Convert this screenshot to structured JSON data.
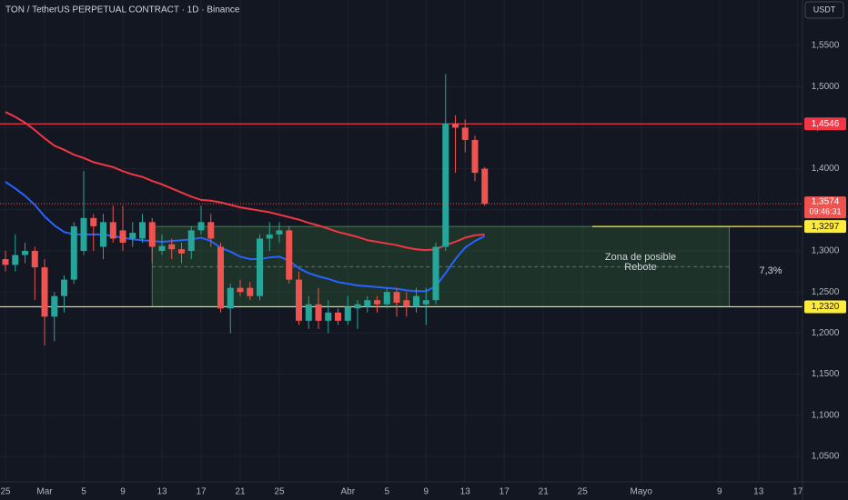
{
  "chart_data": {
    "type": "candlestick",
    "title": "TON / TetherUS PERPETUAL CONTRACT · 1D · Binance",
    "currency": "USDT",
    "xlim": [
      -0.56,
      81.49
    ],
    "ylim": [
      1.019,
      1.6053
    ],
    "xticks": [
      {
        "value": 0,
        "label": "25"
      },
      {
        "value": 4,
        "label": "Mar"
      },
      {
        "value": 8,
        "label": "5"
      },
      {
        "value": 12,
        "label": "9"
      },
      {
        "value": 16,
        "label": "13"
      },
      {
        "value": 20,
        "label": "17"
      },
      {
        "value": 24,
        "label": "21"
      },
      {
        "value": 28,
        "label": "25"
      },
      {
        "value": 35,
        "label": "Abr"
      },
      {
        "value": 39,
        "label": "5"
      },
      {
        "value": 43,
        "label": "9"
      },
      {
        "value": 47,
        "label": "13"
      },
      {
        "value": 51,
        "label": "17"
      },
      {
        "value": 55,
        "label": "21"
      },
      {
        "value": 59,
        "label": "25"
      },
      {
        "value": 65,
        "label": "Mayo"
      },
      {
        "value": 73,
        "label": "9"
      },
      {
        "value": 77,
        "label": "13"
      },
      {
        "value": 81,
        "label": "17"
      }
    ],
    "yticks": [
      {
        "value": 1.55,
        "label": "1,5500"
      },
      {
        "value": 1.5,
        "label": "1,5000"
      },
      {
        "value": 1.45,
        "label": "1,4500"
      },
      {
        "value": 1.4,
        "label": "1,4000"
      },
      {
        "value": 1.35,
        "label": "1,3500"
      },
      {
        "value": 1.3,
        "label": "1,3000"
      },
      {
        "value": 1.25,
        "label": "1,2500"
      },
      {
        "value": 1.2,
        "label": "1,2000"
      },
      {
        "value": 1.15,
        "label": "1,1500"
      },
      {
        "value": 1.1,
        "label": "1,1000"
      },
      {
        "value": 1.05,
        "label": "1,0500"
      }
    ],
    "grid": true,
    "up_color": "#26a69a",
    "down_color": "#ef5350",
    "candles": {
      "x": [
        0,
        1,
        2,
        3,
        4,
        5,
        6,
        7,
        8,
        9,
        10,
        11,
        12,
        13,
        14,
        15,
        16,
        17,
        18,
        19,
        20,
        21,
        22,
        23,
        24,
        25,
        26,
        27,
        28,
        29,
        30,
        31,
        32,
        33,
        34,
        35,
        36,
        37,
        38,
        39,
        40,
        41,
        42,
        43,
        44,
        45,
        46,
        47,
        48,
        49
      ],
      "open": [
        1.29,
        1.283,
        1.295,
        1.3,
        1.28,
        1.22,
        1.245,
        1.265,
        1.3,
        1.34,
        1.305,
        1.335,
        1.325,
        1.315,
        1.315,
        1.335,
        1.3,
        1.308,
        1.302,
        1.3,
        1.325,
        1.335,
        1.305,
        1.23,
        1.255,
        1.255,
        1.245,
        1.315,
        1.32,
        1.325,
        1.265,
        1.215,
        1.235,
        1.215,
        1.225,
        1.215,
        1.23,
        1.232,
        1.24,
        1.235,
        1.25,
        1.24,
        1.232,
        1.235,
        1.24,
        1.305,
        1.455,
        1.45,
        1.435,
        1.4
      ],
      "high": [
        1.3,
        1.32,
        1.31,
        1.305,
        1.29,
        1.25,
        1.27,
        1.335,
        1.397,
        1.345,
        1.345,
        1.355,
        1.355,
        1.335,
        1.345,
        1.34,
        1.32,
        1.315,
        1.31,
        1.33,
        1.355,
        1.345,
        1.31,
        1.26,
        1.265,
        1.262,
        1.32,
        1.335,
        1.335,
        1.33,
        1.275,
        1.245,
        1.255,
        1.24,
        1.23,
        1.245,
        1.24,
        1.245,
        1.245,
        1.255,
        1.255,
        1.25,
        1.255,
        1.255,
        1.31,
        1.515,
        1.465,
        1.46,
        1.44,
        1.402
      ],
      "low": [
        1.275,
        1.275,
        1.285,
        1.24,
        1.185,
        1.19,
        1.225,
        1.26,
        1.295,
        1.3,
        1.29,
        1.31,
        1.3,
        1.305,
        1.31,
        1.285,
        1.295,
        1.29,
        1.285,
        1.29,
        1.32,
        1.305,
        1.225,
        1.2,
        1.245,
        1.24,
        1.24,
        1.3,
        1.31,
        1.26,
        1.21,
        1.205,
        1.205,
        1.2,
        1.21,
        1.21,
        1.205,
        1.225,
        1.225,
        1.23,
        1.22,
        1.22,
        1.225,
        1.21,
        1.235,
        1.3,
        1.395,
        1.42,
        1.385,
        1.355
      ],
      "close": [
        1.283,
        1.295,
        1.3,
        1.28,
        1.22,
        1.245,
        1.265,
        1.33,
        1.34,
        1.33,
        1.335,
        1.315,
        1.31,
        1.322,
        1.335,
        1.305,
        1.306,
        1.302,
        1.297,
        1.325,
        1.335,
        1.315,
        1.23,
        1.255,
        1.25,
        1.245,
        1.315,
        1.32,
        1.325,
        1.265,
        1.215,
        1.235,
        1.215,
        1.225,
        1.215,
        1.232,
        1.235,
        1.24,
        1.235,
        1.25,
        1.237,
        1.232,
        1.245,
        1.24,
        1.305,
        1.455,
        1.45,
        1.435,
        1.395,
        1.3574
      ]
    },
    "series": [
      {
        "color": "#f23645",
        "values": [
          1.469,
          1.463,
          1.456,
          1.447,
          1.437,
          1.428,
          1.423,
          1.417,
          1.413,
          1.408,
          1.405,
          1.402,
          1.397,
          1.393,
          1.39,
          1.385,
          1.381,
          1.376,
          1.371,
          1.366,
          1.362,
          1.361,
          1.359,
          1.356,
          1.353,
          1.351,
          1.349,
          1.347,
          1.344,
          1.341,
          1.338,
          1.334,
          1.331,
          1.327,
          1.323,
          1.32,
          1.317,
          1.313,
          1.311,
          1.309,
          1.307,
          1.304,
          1.302,
          1.301,
          1.302,
          1.307,
          1.311,
          1.316,
          1.319,
          1.32
        ]
      },
      {
        "color": "#2962ff",
        "values": [
          1.384,
          1.376,
          1.367,
          1.356,
          1.342,
          1.331,
          1.323,
          1.32,
          1.32,
          1.32,
          1.32,
          1.318,
          1.316,
          1.314,
          1.313,
          1.312,
          1.311,
          1.312,
          1.313,
          1.314,
          1.316,
          1.312,
          1.304,
          1.299,
          1.293,
          1.29,
          1.29,
          1.292,
          1.293,
          1.288,
          1.279,
          1.273,
          1.269,
          1.266,
          1.262,
          1.26,
          1.258,
          1.257,
          1.256,
          1.255,
          1.254,
          1.252,
          1.251,
          1.251,
          1.257,
          1.273,
          1.29,
          1.304,
          1.312,
          1.318
        ]
      }
    ],
    "levels": [
      {
        "value": 1.4546,
        "label": "1,4546",
        "color": "#f23645",
        "from": -0.56
      },
      {
        "value": 1.3297,
        "label": "1,3297",
        "color": "#ffeb3b",
        "from": 60
      },
      {
        "value": 1.232,
        "label": "1,2320",
        "color": "#ffeb3b",
        "from": -0.56
      }
    ],
    "last_price": {
      "value": 1.3574,
      "label": "1,3574",
      "countdown": "09:46:31"
    },
    "zone": {
      "x": [
        15,
        74
      ],
      "y": [
        1.232,
        1.3297
      ],
      "mid": 1.2808,
      "text": [
        "Zona de posible",
        "Rebote"
      ],
      "change": "7,3%"
    }
  }
}
